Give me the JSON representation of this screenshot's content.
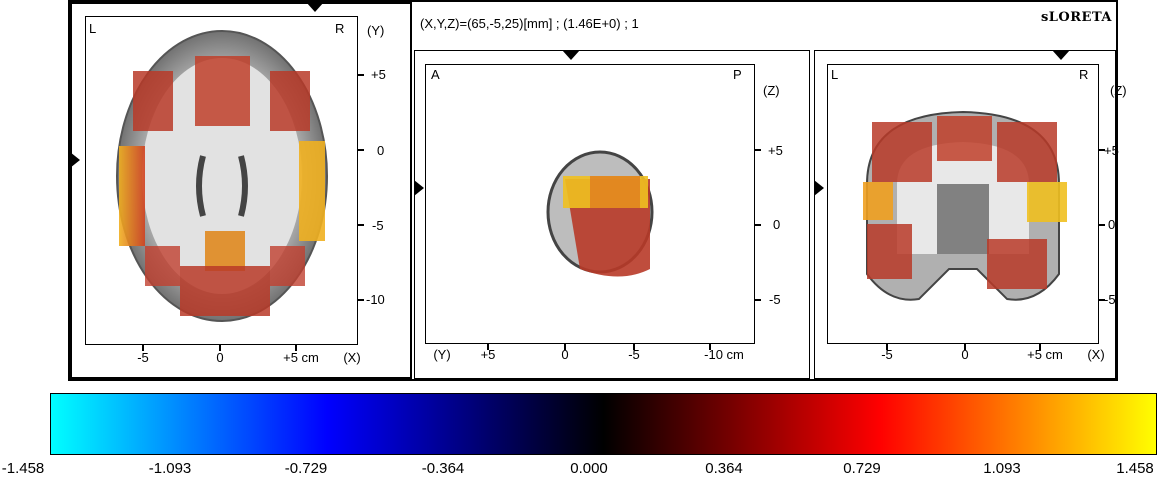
{
  "info": {
    "coords": "(X,Y,Z)=(65,-5,25)[mm]  ;  (1.46E+0)  ;  1",
    "method": "sLORETA"
  },
  "axial": {
    "corner_left": "L",
    "corner_right": "R",
    "axis_name": "(Y)",
    "y_ticks": [
      "+5",
      "0",
      "-5",
      "-10"
    ],
    "x_ticks": [
      "-5",
      "0",
      "+5 cm",
      "(X)"
    ]
  },
  "sagittal": {
    "corner_left": "A",
    "corner_right": "P",
    "axis_name": "(Z)",
    "y_ticks": [
      "+5",
      "0",
      "-5"
    ],
    "x_ticks": [
      "(Y)",
      "+5",
      "0",
      "-5",
      "-10 cm"
    ]
  },
  "coronal": {
    "corner_left": "L",
    "corner_right": "R",
    "axis_name": "(Z)",
    "y_ticks": [
      "+5",
      "0",
      "-5"
    ],
    "x_ticks": [
      "-5",
      "0",
      "+5 cm",
      "(X)"
    ]
  },
  "colorbar": {
    "labels": [
      "-1.458",
      "-1.093",
      "-0.729",
      "-0.364",
      "0.000",
      "0.364",
      "0.729",
      "1.093",
      "1.458"
    ],
    "colors": [
      "#00ffff",
      "#0000ff",
      "#000000",
      "#ff0000",
      "#ffff00"
    ]
  }
}
